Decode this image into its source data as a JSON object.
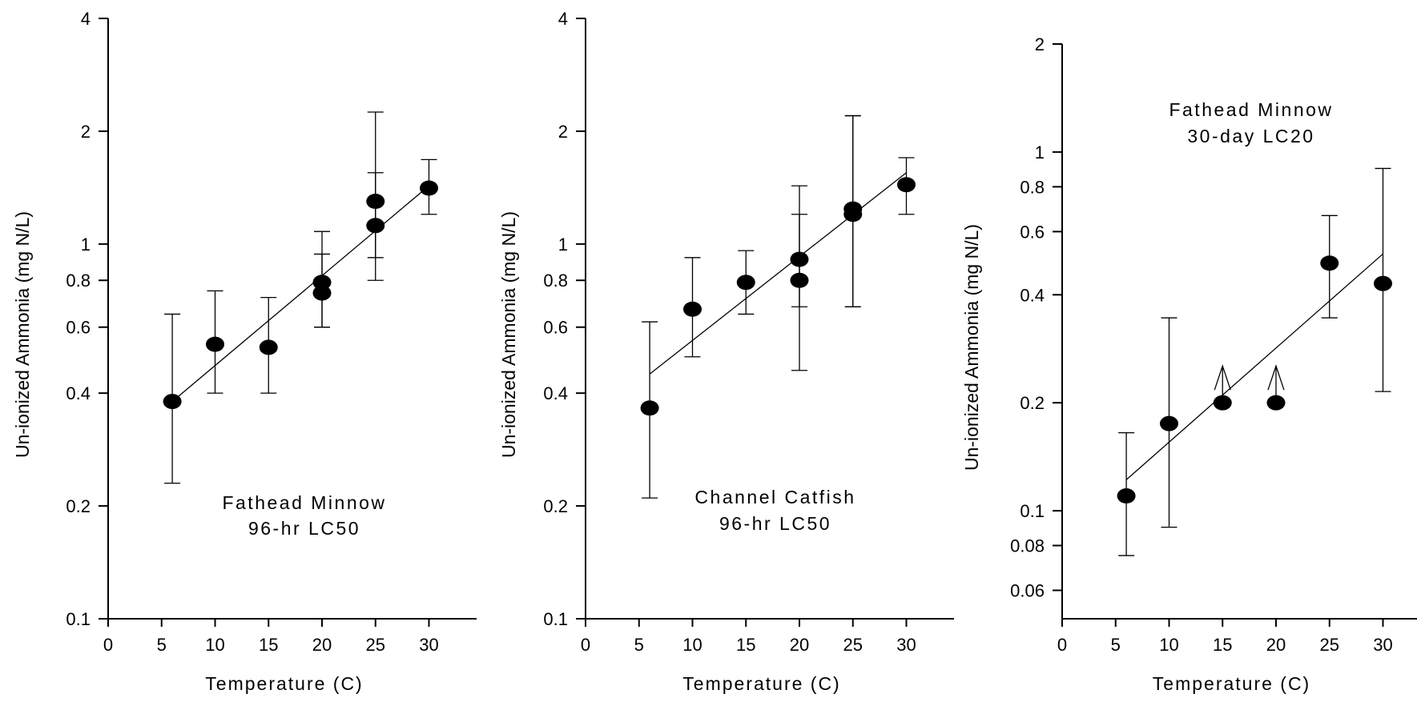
{
  "chart_data": [
    {
      "type": "scatter",
      "title_lines": [
        "Fathead Minnow",
        "96-hr LC50"
      ],
      "xlabel": "Temperature (C)",
      "ylabel": "Un-ionized Ammonia (mg N/L)",
      "y_scale": "log",
      "xlim": [
        0,
        34
      ],
      "ylim": [
        0.1,
        4
      ],
      "x_ticks": [
        0,
        5,
        10,
        15,
        20,
        25,
        30
      ],
      "y_ticks": [
        0.1,
        0.2,
        0.4,
        0.6,
        0.8,
        1,
        2,
        4
      ],
      "y_tick_labels": [
        "0.1",
        "0.2",
        "0.4",
        "0.6",
        "0.8",
        "1",
        "2",
        "4"
      ],
      "grid": false,
      "points": [
        {
          "x": 6,
          "y": 0.38,
          "err_low": 0.23,
          "err_high": 0.65
        },
        {
          "x": 10,
          "y": 0.54,
          "err_low": 0.4,
          "err_high": 0.75
        },
        {
          "x": 15,
          "y": 0.53,
          "err_low": 0.4,
          "err_high": 0.72
        },
        {
          "x": 20,
          "y": 0.79,
          "err_low": 0.6,
          "err_high": 1.08
        },
        {
          "x": 20,
          "y": 0.74,
          "err_low": 0.6,
          "err_high": 0.94
        },
        {
          "x": 25,
          "y": 1.3,
          "err_low": 0.8,
          "err_high": 2.25
        },
        {
          "x": 25,
          "y": 1.12,
          "err_low": 0.92,
          "err_high": 1.55
        },
        {
          "x": 30,
          "y": 1.41,
          "err_low": 1.2,
          "err_high": 1.68
        }
      ],
      "fit_line": {
        "x": [
          6,
          30
        ],
        "y": [
          0.38,
          1.43
        ]
      }
    },
    {
      "type": "scatter",
      "title_lines": [
        "Channel Catfish",
        "96-hr LC50"
      ],
      "xlabel": "Temperature (C)",
      "ylabel": "Un-ionized Ammonia  (mg N/L)",
      "y_scale": "log",
      "xlim": [
        0,
        34
      ],
      "ylim": [
        0.1,
        4
      ],
      "x_ticks": [
        0,
        5,
        10,
        15,
        20,
        25,
        30
      ],
      "y_ticks": [
        0.1,
        0.2,
        0.4,
        0.6,
        0.8,
        1,
        2,
        4
      ],
      "y_tick_labels": [
        "0.1",
        "0.2",
        "0.4",
        "0.6",
        "0.8",
        "1",
        "2",
        "4"
      ],
      "grid": false,
      "points": [
        {
          "x": 6,
          "y": 0.365,
          "err_low": 0.21,
          "err_high": 0.62
        },
        {
          "x": 10,
          "y": 0.67,
          "err_low": 0.5,
          "err_high": 0.92
        },
        {
          "x": 15,
          "y": 0.79,
          "err_low": 0.65,
          "err_high": 0.96
        },
        {
          "x": 20,
          "y": 0.91,
          "err_low": 0.46,
          "err_high": 1.43
        },
        {
          "x": 20,
          "y": 0.8,
          "err_low": 0.68,
          "err_high": 1.2
        },
        {
          "x": 25,
          "y": 1.24,
          "err_low": 0.68,
          "err_high": 2.2
        },
        {
          "x": 25,
          "y": 1.2,
          "err_low": 0.68,
          "err_high": 2.2
        },
        {
          "x": 30,
          "y": 1.44,
          "err_low": 1.2,
          "err_high": 1.7
        }
      ],
      "fit_line": {
        "x": [
          6,
          30
        ],
        "y": [
          0.45,
          1.55
        ]
      }
    },
    {
      "type": "scatter",
      "title_lines": [
        "Fathead Minnow",
        "30-day LC20"
      ],
      "xlabel": "Temperature (C)",
      "ylabel": "Un-ionized Ammonia (mg N/L)",
      "y_scale": "log",
      "xlim": [
        0,
        34
      ],
      "ylim": [
        0.05,
        2
      ],
      "x_ticks": [
        0,
        5,
        10,
        15,
        20,
        25,
        30
      ],
      "y_ticks": [
        0.06,
        0.08,
        0.1,
        0.2,
        0.4,
        0.6,
        0.8,
        1,
        2
      ],
      "y_tick_labels": [
        "0.06",
        "0.08",
        "0.1",
        "0.2",
        "0.4",
        "0.6",
        "0.8",
        "1",
        "2"
      ],
      "grid": false,
      "points": [
        {
          "x": 6,
          "y": 0.11,
          "err_low": 0.075,
          "err_high": 0.165
        },
        {
          "x": 10,
          "y": 0.175,
          "err_low": 0.09,
          "err_high": 0.345
        },
        {
          "x": 15,
          "y": 0.2,
          "arrow_up": true
        },
        {
          "x": 20,
          "y": 0.2,
          "arrow_up": true
        },
        {
          "x": 25,
          "y": 0.49,
          "err_low": 0.345,
          "err_high": 0.665
        },
        {
          "x": 30,
          "y": 0.43,
          "err_low": 0.215,
          "err_high": 0.9
        }
      ],
      "fit_line": {
        "x": [
          6,
          30
        ],
        "y": [
          0.122,
          0.52
        ]
      }
    }
  ]
}
